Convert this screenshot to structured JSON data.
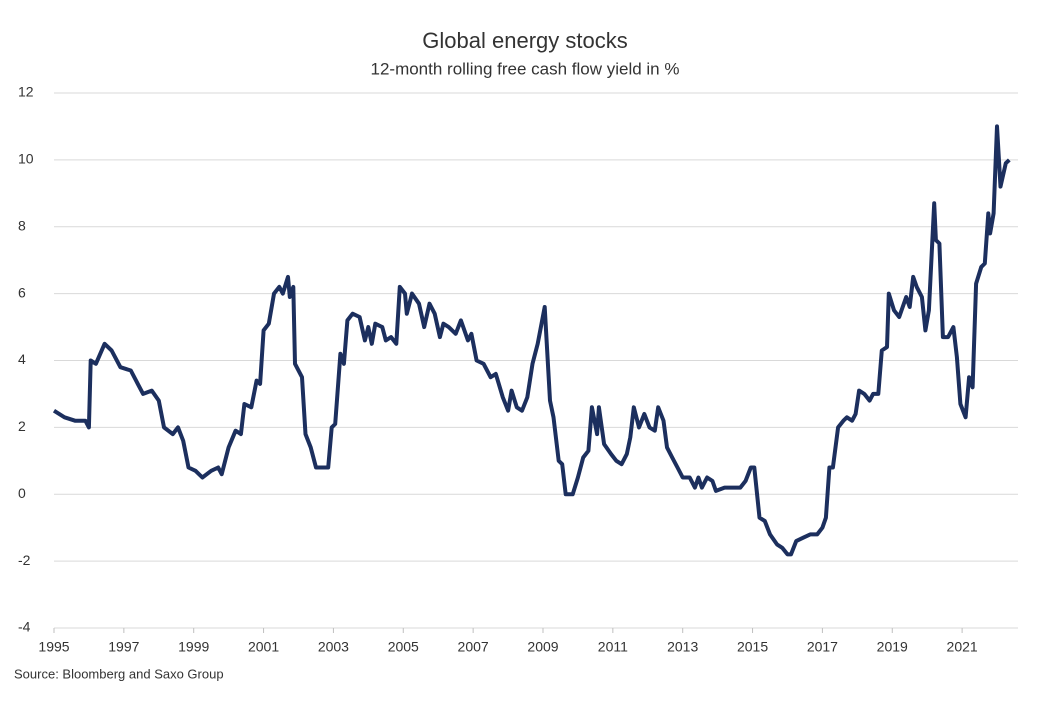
{
  "chart_data": {
    "type": "line",
    "title": "Global energy stocks",
    "subtitle": "12-month rolling free cash flow yield in %",
    "source": "Source: Bloomberg and Saxo Group",
    "x": [
      1995.0,
      1995.3,
      1995.6,
      1995.9,
      1996.0,
      1996.05,
      1996.2,
      1996.45,
      1996.65,
      1996.9,
      1997.2,
      1997.4,
      1997.55,
      1997.8,
      1998.0,
      1998.15,
      1998.4,
      1998.55,
      1998.7,
      1998.85,
      1999.05,
      1999.25,
      1999.5,
      1999.7,
      1999.8,
      2000.0,
      2000.2,
      2000.35,
      2000.45,
      2000.65,
      2000.8,
      2000.9,
      2001.0,
      2001.15,
      2001.3,
      2001.45,
      2001.55,
      2001.7,
      2001.75,
      2001.85,
      2001.9,
      2002.1,
      2002.2,
      2002.35,
      2002.5,
      2002.85,
      2002.95,
      2003.05,
      2003.2,
      2003.3,
      2003.4,
      2003.55,
      2003.75,
      2003.9,
      2004.0,
      2004.1,
      2004.2,
      2004.4,
      2004.5,
      2004.65,
      2004.8,
      2004.9,
      2005.05,
      2005.1,
      2005.25,
      2005.45,
      2005.6,
      2005.75,
      2005.9,
      2006.05,
      2006.15,
      2006.3,
      2006.5,
      2006.65,
      2006.85,
      2006.95,
      2007.1,
      2007.3,
      2007.5,
      2007.65,
      2007.85,
      2008.0,
      2008.1,
      2008.25,
      2008.4,
      2008.55,
      2008.7,
      2008.85,
      2009.05,
      2009.2,
      2009.3,
      2009.45,
      2009.55,
      2009.65,
      2009.85,
      2010.0,
      2010.15,
      2010.3,
      2010.4,
      2010.55,
      2010.6,
      2010.75,
      2010.95,
      2011.1,
      2011.25,
      2011.4,
      2011.5,
      2011.6,
      2011.75,
      2011.9,
      2012.05,
      2012.2,
      2012.3,
      2012.45,
      2012.55,
      2012.7,
      2012.85,
      2013.0,
      2013.2,
      2013.35,
      2013.45,
      2013.55,
      2013.7,
      2013.85,
      2013.95,
      2014.2,
      2014.4,
      2014.65,
      2014.8,
      2014.95,
      2015.05,
      2015.2,
      2015.35,
      2015.5,
      2015.7,
      2015.85,
      2016.0,
      2016.1,
      2016.25,
      2016.45,
      2016.65,
      2016.85,
      2017.0,
      2017.1,
      2017.2,
      2017.3,
      2017.45,
      2017.6,
      2017.7,
      2017.85,
      2017.95,
      2018.05,
      2018.2,
      2018.35,
      2018.45,
      2018.6,
      2018.7,
      2018.85,
      2018.9,
      2019.05,
      2019.2,
      2019.3,
      2019.4,
      2019.5,
      2019.6,
      2019.7,
      2019.85,
      2019.95,
      2020.05,
      2020.2,
      2020.25,
      2020.35,
      2020.45,
      2020.6,
      2020.75,
      2020.85,
      2020.95,
      2021.1,
      2021.2,
      2021.3,
      2021.4,
      2021.55,
      2021.65,
      2021.75,
      2021.8,
      2021.9,
      2022.0,
      2022.1,
      2022.25,
      2022.35
    ],
    "series": [
      {
        "name": "Free cash flow yield",
        "color": "#1c2f5e",
        "values": [
          2.5,
          2.3,
          2.2,
          2.2,
          2.0,
          4.0,
          3.9,
          4.5,
          4.3,
          3.8,
          3.7,
          3.3,
          3.0,
          3.1,
          2.8,
          2.0,
          1.8,
          2.0,
          1.6,
          0.8,
          0.7,
          0.5,
          0.7,
          0.8,
          0.6,
          1.4,
          1.9,
          1.8,
          2.7,
          2.6,
          3.4,
          3.3,
          4.9,
          5.1,
          6.0,
          6.2,
          6.0,
          6.5,
          5.9,
          6.2,
          3.9,
          3.5,
          1.8,
          1.4,
          0.8,
          0.8,
          2.0,
          2.1,
          4.2,
          3.9,
          5.2,
          5.4,
          5.3,
          4.6,
          5.0,
          4.5,
          5.1,
          5.0,
          4.6,
          4.7,
          4.5,
          6.2,
          6.0,
          5.4,
          6.0,
          5.7,
          5.0,
          5.7,
          5.4,
          4.7,
          5.1,
          5.0,
          4.8,
          5.2,
          4.6,
          4.8,
          4.0,
          3.9,
          3.5,
          3.6,
          2.9,
          2.5,
          3.1,
          2.6,
          2.5,
          2.9,
          3.9,
          4.5,
          5.6,
          2.8,
          2.3,
          1.0,
          0.9,
          0.0,
          0.0,
          0.5,
          1.1,
          1.3,
          2.6,
          1.8,
          2.6,
          1.5,
          1.2,
          1.0,
          0.9,
          1.2,
          1.7,
          2.6,
          2.0,
          2.4,
          2.0,
          1.9,
          2.6,
          2.2,
          1.4,
          1.1,
          0.8,
          0.5,
          0.5,
          0.2,
          0.5,
          0.2,
          0.5,
          0.4,
          0.1,
          0.2,
          0.2,
          0.2,
          0.4,
          0.8,
          0.8,
          -0.7,
          -0.8,
          -1.2,
          -1.5,
          -1.6,
          -1.8,
          -1.8,
          -1.4,
          -1.3,
          -1.2,
          -1.2,
          -1.0,
          -0.7,
          0.8,
          0.8,
          2.0,
          2.2,
          2.3,
          2.2,
          2.4,
          3.1,
          3.0,
          2.8,
          3.0,
          3.0,
          4.3,
          4.4,
          6.0,
          5.5,
          5.3,
          5.6,
          5.9,
          5.6,
          6.5,
          6.2,
          5.9,
          4.9,
          5.5,
          8.7,
          7.6,
          7.5,
          4.7,
          4.7,
          5.0,
          4.1,
          2.7,
          2.3,
          3.5,
          3.2,
          6.3,
          6.8,
          6.9,
          8.4,
          7.8,
          8.4,
          11.0,
          9.2,
          9.9,
          10.0
        ]
      }
    ],
    "xlim": [
      1995,
      2022.6
    ],
    "xticks": [
      1995,
      1997,
      1999,
      2001,
      2003,
      2005,
      2007,
      2009,
      2011,
      2013,
      2015,
      2017,
      2019,
      2021
    ],
    "ylim": [
      -4,
      12
    ],
    "yticks": [
      -4,
      -2,
      0,
      2,
      4,
      6,
      8,
      10,
      12
    ],
    "grid": true
  }
}
